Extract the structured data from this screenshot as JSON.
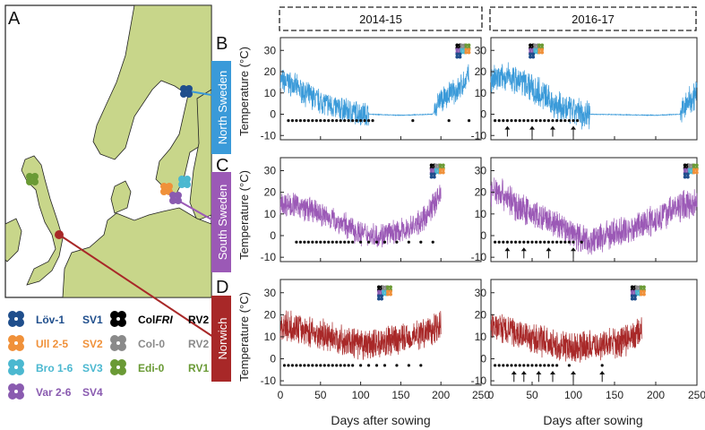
{
  "panel_letters": {
    "map": "A",
    "north": "B",
    "south": "C",
    "norwich": "D"
  },
  "periods": [
    "2014-15",
    "2016-17"
  ],
  "regions": [
    {
      "key": "north",
      "label": "North Sweden",
      "color": "#3a9ad9"
    },
    {
      "key": "south",
      "label": "South Sweden",
      "color": "#9b59b6"
    },
    {
      "key": "norwich",
      "label": "Norwich",
      "color": "#a82828"
    }
  ],
  "axis": {
    "ylabel": "Temperature (°C)",
    "xlabel": "Days after sowing",
    "yticks": [
      -10,
      0,
      10,
      20,
      30
    ],
    "xticks": [
      0,
      50,
      100,
      150,
      200,
      250
    ],
    "ylim": [
      -12,
      36
    ],
    "xlim": [
      0,
      250
    ]
  },
  "legend": [
    {
      "name": "Löv-1",
      "code": "SV1",
      "color": "#1f4e8c"
    },
    {
      "name": "Ull 2-5",
      "code": "SV2",
      "color": "#f0913a"
    },
    {
      "name": "Bro 1-6",
      "code": "SV3",
      "color": "#4bb8d0"
    },
    {
      "name": "Var 2-6",
      "code": "SV4",
      "color": "#8a5bb0"
    },
    {
      "name": "Col",
      "name_italic": "FRI",
      "code": "RV2",
      "color": "#000000"
    },
    {
      "name": "Col-0",
      "code": "RV2",
      "color": "#8a8a8a"
    },
    {
      "name": "Edi-0",
      "code": "RV1",
      "color": "#6a9a35"
    }
  ],
  "colors": {
    "land": "#c8d68a",
    "sea": "#ffffff",
    "coast": "#222222"
  },
  "chart_data": [
    {
      "type": "line",
      "region": "North Sweden",
      "period": "2014-15",
      "days": 235,
      "profile": [
        [
          0,
          16
        ],
        [
          15,
          14
        ],
        [
          30,
          10
        ],
        [
          50,
          6
        ],
        [
          70,
          3
        ],
        [
          90,
          1
        ],
        [
          110,
          0
        ],
        [
          150,
          -0.5
        ],
        [
          190,
          0
        ],
        [
          197,
          6
        ],
        [
          210,
          9
        ],
        [
          225,
          13
        ],
        [
          235,
          18
        ]
      ],
      "noise": 5,
      "winter": [
        110,
        192
      ],
      "sowing_dots": [
        10,
        15,
        20,
        25,
        30,
        35,
        40,
        45,
        50,
        55,
        60,
        65,
        70,
        75,
        80,
        85,
        90,
        95,
        100,
        105,
        110,
        115,
        165,
        210,
        235
      ],
      "arrows": []
    },
    {
      "type": "line",
      "region": "North Sweden",
      "period": "2016-17",
      "days": 250,
      "profile": [
        [
          0,
          16
        ],
        [
          20,
          17
        ],
        [
          40,
          15
        ],
        [
          60,
          10
        ],
        [
          80,
          4
        ],
        [
          100,
          1
        ],
        [
          120,
          0
        ],
        [
          200,
          -0.5
        ],
        [
          230,
          0
        ],
        [
          240,
          6
        ],
        [
          250,
          10
        ]
      ],
      "noise": 6,
      "winter": [
        120,
        230
      ],
      "sowing_dots": [
        5,
        10,
        15,
        20,
        25,
        30,
        35,
        40,
        45,
        50,
        55,
        60,
        65,
        70,
        75,
        80,
        85,
        90,
        95,
        100,
        105
      ],
      "arrows": [
        20,
        50,
        75,
        100
      ]
    },
    {
      "type": "line",
      "region": "South Sweden",
      "period": "2014-15",
      "days": 200,
      "profile": [
        [
          0,
          15
        ],
        [
          20,
          14
        ],
        [
          50,
          10
        ],
        [
          80,
          5
        ],
        [
          100,
          1
        ],
        [
          120,
          0
        ],
        [
          140,
          1
        ],
        [
          160,
          3
        ],
        [
          180,
          8
        ],
        [
          190,
          14
        ],
        [
          200,
          20
        ]
      ],
      "noise": 5,
      "winter": [],
      "sowing_dots": [
        20,
        25,
        30,
        35,
        40,
        45,
        50,
        55,
        60,
        65,
        70,
        75,
        80,
        85,
        90,
        100,
        110,
        120,
        130,
        145,
        160,
        175,
        190
      ],
      "arrows": []
    },
    {
      "type": "line",
      "region": "South Sweden",
      "period": "2016-17",
      "days": 250,
      "profile": [
        [
          0,
          20
        ],
        [
          10,
          21
        ],
        [
          30,
          14
        ],
        [
          60,
          8
        ],
        [
          90,
          3
        ],
        [
          110,
          -1
        ],
        [
          120,
          -3
        ],
        [
          140,
          0
        ],
        [
          170,
          3
        ],
        [
          200,
          8
        ],
        [
          220,
          12
        ],
        [
          250,
          16
        ]
      ],
      "noise": 6,
      "winter": [],
      "sowing_dots": [
        5,
        10,
        15,
        20,
        25,
        30,
        35,
        40,
        45,
        50,
        55,
        60,
        65,
        70,
        75,
        80,
        85,
        90,
        95,
        100,
        110
      ],
      "arrows": [
        20,
        40,
        70,
        100
      ]
    },
    {
      "type": "line",
      "region": "Norwich",
      "period": "2014-15",
      "days": 200,
      "profile": [
        [
          0,
          15
        ],
        [
          20,
          14
        ],
        [
          50,
          11
        ],
        [
          80,
          8
        ],
        [
          100,
          6
        ],
        [
          120,
          7
        ],
        [
          150,
          9
        ],
        [
          180,
          12
        ],
        [
          200,
          16
        ]
      ],
      "noise": 6,
      "winter": [],
      "sowing_dots": [
        5,
        10,
        15,
        20,
        25,
        30,
        35,
        40,
        45,
        50,
        55,
        60,
        65,
        70,
        75,
        80,
        85,
        90,
        100,
        110,
        120,
        130,
        145,
        160,
        175
      ],
      "arrows": []
    },
    {
      "type": "line",
      "region": "Norwich",
      "period": "2016-17",
      "days": 183,
      "profile": [
        [
          0,
          15
        ],
        [
          20,
          13
        ],
        [
          50,
          9
        ],
        [
          80,
          6
        ],
        [
          100,
          5
        ],
        [
          130,
          6
        ],
        [
          160,
          8
        ],
        [
          183,
          12
        ]
      ],
      "noise": 6,
      "winter": [],
      "sowing_dots": [
        5,
        10,
        15,
        20,
        25,
        30,
        35,
        40,
        45,
        50,
        55,
        60,
        65,
        70,
        75,
        80,
        95,
        135
      ],
      "arrows": [
        28,
        40,
        58,
        75,
        100,
        135
      ]
    }
  ]
}
